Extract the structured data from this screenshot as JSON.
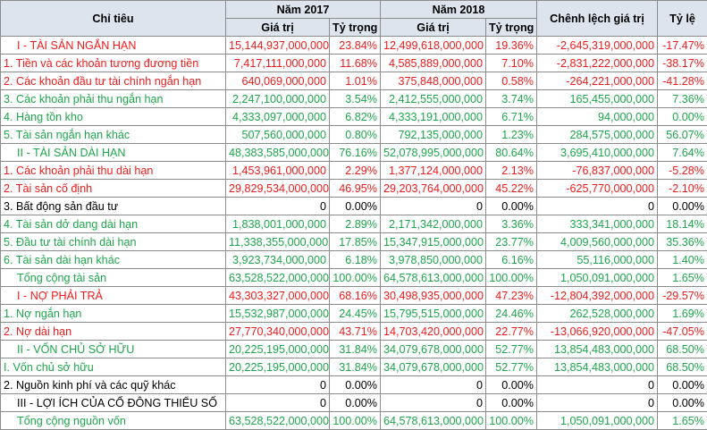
{
  "headers": {
    "indicator": "Chỉ tiêu",
    "year_2017": "Năm 2017",
    "year_2018": "Năm 2018",
    "value": "Giá trị",
    "weight": "Tỷ trọng",
    "difference": "Chênh lệch giá trị",
    "ratio": "Tỷ lệ"
  },
  "colors": {
    "red": "#ee1c1c",
    "green": "#1ea64b",
    "black": "#000000",
    "header_bg": "#dde4ee"
  },
  "rows": [
    {
      "label": "I - TÀI SẢN NGẮN HẠN",
      "v2017": "15,144,937,000,000",
      "w2017": "23.84%",
      "v2018": "12,499,618,000,000",
      "w2018": "19.36%",
      "diff": "-2,645,319,000,000",
      "ratio": "-17.47%",
      "color": "red",
      "kind": "cat"
    },
    {
      "label": "1. Tiền và các khoản tương đương tiền",
      "v2017": "7,417,111,000,000",
      "w2017": "11.68%",
      "v2018": "4,585,889,000,000",
      "w2018": "7.10%",
      "diff": "-2,831,222,000,000",
      "ratio": "-38.17%",
      "color": "red",
      "kind": "item"
    },
    {
      "label": "2. Các khoản đầu tư tài chính ngắn hạn",
      "v2017": "640,069,000,000",
      "w2017": "1.01%",
      "v2018": "375,848,000,000",
      "w2018": "0.58%",
      "diff": "-264,221,000,000",
      "ratio": "-41.28%",
      "color": "red",
      "kind": "item"
    },
    {
      "label": "3. Các khoản phải thu ngắn hạn",
      "v2017": "2,247,100,000,000",
      "w2017": "3.54%",
      "v2018": "2,412,555,000,000",
      "w2018": "3.74%",
      "diff": "165,455,000,000",
      "ratio": "7.36%",
      "color": "green",
      "kind": "item"
    },
    {
      "label": "4. Hàng tồn kho",
      "v2017": "4,333,097,000,000",
      "w2017": "6.82%",
      "v2018": "4,333,191,000,000",
      "w2018": "6.71%",
      "diff": "94,000,000",
      "ratio": "0.00%",
      "color": "green",
      "kind": "item"
    },
    {
      "label": "5. Tài sản ngắn hạn khác",
      "v2017": "507,560,000,000",
      "w2017": "0.80%",
      "v2018": "792,135,000,000",
      "w2018": "1.23%",
      "diff": "284,575,000,000",
      "ratio": "56.07%",
      "color": "green",
      "kind": "item"
    },
    {
      "label": "II - TÀI SẢN DÀI HẠN",
      "v2017": "48,383,585,000,000",
      "w2017": "76.16%",
      "v2018": "52,078,995,000,000",
      "w2018": "80.64%",
      "diff": "3,695,410,000,000",
      "ratio": "7.64%",
      "color": "green",
      "kind": "cat"
    },
    {
      "label": "1. Các khoản phải thu dài hạn",
      "v2017": "1,453,961,000,000",
      "w2017": "2.29%",
      "v2018": "1,377,124,000,000",
      "w2018": "2.13%",
      "diff": "-76,837,000,000",
      "ratio": "-5.28%",
      "color": "red",
      "kind": "item"
    },
    {
      "label": "2. Tài sản cố định",
      "v2017": "29,829,534,000,000",
      "w2017": "46.95%",
      "v2018": "29,203,764,000,000",
      "w2018": "45.22%",
      "diff": "-625,770,000,000",
      "ratio": "-2.10%",
      "color": "red",
      "kind": "item"
    },
    {
      "label": "3. Bất động sản đầu tư",
      "v2017": "0",
      "w2017": "0.00%",
      "v2018": "0",
      "w2018": "0.00%",
      "diff": "0",
      "ratio": "0.00%",
      "color": "black",
      "kind": "item"
    },
    {
      "label": "4. Tài sản dở dang dài hạn",
      "v2017": "1,838,001,000,000",
      "w2017": "2.89%",
      "v2018": "2,171,342,000,000",
      "w2018": "3.36%",
      "diff": "333,341,000,000",
      "ratio": "18.14%",
      "color": "green",
      "kind": "item"
    },
    {
      "label": "5. Đầu tư tài chính dài hạn",
      "v2017": "11,338,355,000,000",
      "w2017": "17.85%",
      "v2018": "15,347,915,000,000",
      "w2018": "23.77%",
      "diff": "4,009,560,000,000",
      "ratio": "35.36%",
      "color": "green",
      "kind": "item"
    },
    {
      "label": "6. Tài sản dài hạn khác",
      "v2017": "3,923,734,000,000",
      "w2017": "6.18%",
      "v2018": "3,978,850,000,000",
      "w2018": "6.16%",
      "diff": "55,116,000,000",
      "ratio": "1.40%",
      "color": "green",
      "kind": "item"
    },
    {
      "label": "Tổng cộng tài sản",
      "v2017": "63,528,522,000,000",
      "w2017": "100.00%",
      "v2018": "64,578,613,000,000",
      "w2018": "100.00%",
      "diff": "1,050,091,000,000",
      "ratio": "1.65%",
      "color": "green",
      "kind": "cat"
    },
    {
      "label": "I - NỢ PHẢI TRẢ",
      "v2017": "43,303,327,000,000",
      "w2017": "68.16%",
      "v2018": "30,498,935,000,000",
      "w2018": "47.23%",
      "diff": "-12,804,392,000,000",
      "ratio": "-29.57%",
      "color": "red",
      "kind": "cat"
    },
    {
      "label": "1. Nợ ngắn hạn",
      "v2017": "15,532,987,000,000",
      "w2017": "24.45%",
      "v2018": "15,795,515,000,000",
      "w2018": "24.46%",
      "diff": "262,528,000,000",
      "ratio": "1.69%",
      "color": "green",
      "kind": "item"
    },
    {
      "label": "2. Nợ dài hạn",
      "v2017": "27,770,340,000,000",
      "w2017": "43.71%",
      "v2018": "14,703,420,000,000",
      "w2018": "22.77%",
      "diff": "-13,066,920,000,000",
      "ratio": "-47.05%",
      "color": "red",
      "kind": "item"
    },
    {
      "label": "II - VỐN CHỦ SỞ HỮU",
      "v2017": "20,225,195,000,000",
      "w2017": "31.84%",
      "v2018": "34,079,678,000,000",
      "w2018": "52.77%",
      "diff": "13,854,483,000,000",
      "ratio": "68.50%",
      "color": "green",
      "kind": "cat"
    },
    {
      "label": "I. Vốn chủ sở hữu",
      "v2017": "20,225,195,000,000",
      "w2017": "31.84%",
      "v2018": "34,079,678,000,000",
      "w2018": "52.77%",
      "diff": "13,854,483,000,000",
      "ratio": "68.50%",
      "color": "green",
      "kind": "item"
    },
    {
      "label": "2. Nguồn kinh phí và các quỹ khác",
      "v2017": "0",
      "w2017": "0.00%",
      "v2018": "0",
      "w2018": "0.00%",
      "diff": "0",
      "ratio": "0.00%",
      "color": "black",
      "kind": "item"
    },
    {
      "label": "III - LỢI ÍCH CỦA CỔ ĐÔNG THIỂU SỐ",
      "v2017": "0",
      "w2017": "0.00%",
      "v2018": "0",
      "w2018": "0.00%",
      "diff": "0",
      "ratio": "0.00%",
      "color": "black",
      "kind": "cat"
    },
    {
      "label": "Tổng cộng nguồn vốn",
      "v2017": "63,528,522,000,000",
      "w2017": "100.00%",
      "v2018": "64,578,613,000,000",
      "w2018": "100.00%",
      "diff": "1,050,091,000,000",
      "ratio": "1.65%",
      "color": "green",
      "kind": "cat"
    }
  ]
}
